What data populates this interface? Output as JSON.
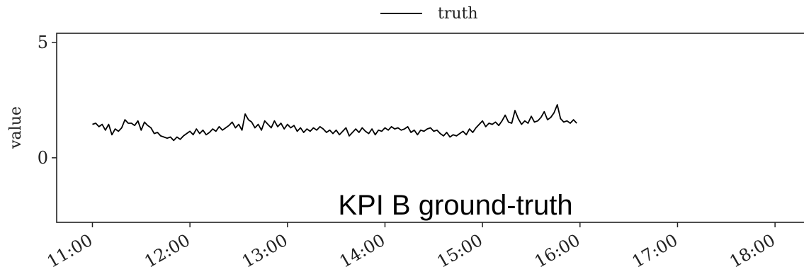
{
  "chart_data": {
    "type": "line",
    "title": "",
    "xlabel": "",
    "ylabel": "value",
    "annotation": "KPI B ground-truth",
    "legend": {
      "placement": "top-center",
      "entries": [
        "truth"
      ]
    },
    "grid": false,
    "x_unit": "time of day (HH:MM)",
    "x_ticks": [
      "11:00",
      "12:00",
      "13:00",
      "14:00",
      "15:00",
      "16:00",
      "17:00",
      "18:00"
    ],
    "xlim": [
      "10:38",
      "18:20"
    ],
    "y_ticks": [
      0,
      5
    ],
    "ylim": [
      -2.8,
      5.4
    ],
    "colors": {
      "truth": "#000000",
      "anomaly": "#ff0000"
    },
    "series": [
      {
        "name": "truth",
        "points": [
          [
            "11:00",
            1.45
          ],
          [
            "11:02",
            1.5
          ],
          [
            "11:04",
            1.35
          ],
          [
            "11:06",
            1.45
          ],
          [
            "11:08",
            1.2
          ],
          [
            "11:10",
            1.45
          ],
          [
            "11:12",
            1.0
          ],
          [
            "11:14",
            1.25
          ],
          [
            "11:16",
            1.15
          ],
          [
            "11:18",
            1.3
          ],
          [
            "11:20",
            1.65
          ],
          [
            "11:22",
            1.5
          ],
          [
            "11:24",
            1.5
          ],
          [
            "11:26",
            1.4
          ],
          [
            "11:28",
            1.6
          ],
          [
            "11:30",
            1.2
          ],
          [
            "11:32",
            1.55
          ],
          [
            "11:34",
            1.4
          ],
          [
            "11:36",
            1.3
          ],
          [
            "11:38",
            1.05
          ],
          [
            "11:40",
            1.1
          ],
          [
            "11:42",
            0.95
          ],
          [
            "11:44",
            0.9
          ],
          [
            "11:46",
            0.85
          ],
          [
            "11:48",
            0.9
          ],
          [
            "11:50",
            0.75
          ],
          [
            "11:52",
            0.9
          ],
          [
            "11:54",
            0.8
          ],
          [
            "11:56",
            0.95
          ],
          [
            "11:58",
            1.05
          ],
          [
            "12:00",
            1.15
          ],
          [
            "12:02",
            1.0
          ],
          [
            "12:04",
            1.25
          ],
          [
            "12:06",
            1.05
          ],
          [
            "12:08",
            1.2
          ],
          [
            "12:10",
            1.0
          ],
          [
            "12:12",
            1.1
          ],
          [
            "12:14",
            1.25
          ],
          [
            "12:16",
            1.15
          ],
          [
            "12:18",
            1.35
          ],
          [
            "12:20",
            1.2
          ],
          [
            "12:22",
            1.3
          ],
          [
            "12:24",
            1.4
          ],
          [
            "12:26",
            1.55
          ],
          [
            "12:28",
            1.3
          ],
          [
            "12:30",
            1.45
          ],
          [
            "12:32",
            1.2
          ],
          [
            "12:34",
            1.9
          ],
          [
            "12:36",
            1.65
          ],
          [
            "12:38",
            1.55
          ],
          [
            "12:40",
            1.3
          ],
          [
            "12:42",
            1.45
          ],
          [
            "12:44",
            1.2
          ],
          [
            "12:46",
            1.6
          ],
          [
            "12:48",
            1.45
          ],
          [
            "12:50",
            1.3
          ],
          [
            "12:52",
            1.6
          ],
          [
            "12:54",
            1.35
          ],
          [
            "12:56",
            1.5
          ],
          [
            "12:58",
            1.25
          ],
          [
            "13:00",
            1.45
          ],
          [
            "13:02",
            1.3
          ],
          [
            "13:04",
            1.4
          ],
          [
            "13:06",
            1.15
          ],
          [
            "13:08",
            1.3
          ],
          [
            "13:10",
            1.1
          ],
          [
            "13:12",
            1.25
          ],
          [
            "13:14",
            1.15
          ],
          [
            "13:16",
            1.3
          ],
          [
            "13:18",
            1.2
          ],
          [
            "13:20",
            1.35
          ],
          [
            "13:22",
            1.25
          ],
          [
            "13:24",
            1.1
          ],
          [
            "13:26",
            1.2
          ],
          [
            "13:28",
            1.05
          ],
          [
            "13:30",
            1.2
          ],
          [
            "13:32",
            1.0
          ],
          [
            "13:34",
            1.15
          ],
          [
            "13:36",
            1.3
          ],
          [
            "13:38",
            0.95
          ],
          [
            "13:40",
            1.1
          ],
          [
            "13:42",
            1.25
          ],
          [
            "13:44",
            1.1
          ],
          [
            "13:46",
            1.3
          ],
          [
            "13:48",
            1.15
          ],
          [
            "13:50",
            1.05
          ],
          [
            "13:52",
            1.25
          ],
          [
            "13:54",
            1.0
          ],
          [
            "13:56",
            1.2
          ],
          [
            "13:58",
            1.15
          ],
          [
            "14:00",
            1.3
          ],
          [
            "14:02",
            1.2
          ],
          [
            "14:04",
            1.35
          ],
          [
            "14:06",
            1.25
          ],
          [
            "14:08",
            1.3
          ],
          [
            "14:10",
            1.2
          ],
          [
            "14:12",
            1.25
          ],
          [
            "14:14",
            1.35
          ],
          [
            "14:16",
            1.1
          ],
          [
            "14:18",
            1.2
          ],
          [
            "14:20",
            1.0
          ],
          [
            "14:22",
            1.2
          ],
          [
            "14:24",
            1.15
          ],
          [
            "14:26",
            1.25
          ],
          [
            "14:28",
            1.3
          ],
          [
            "14:30",
            1.15
          ],
          [
            "14:32",
            1.2
          ],
          [
            "14:34",
            1.05
          ],
          [
            "14:36",
            0.95
          ],
          [
            "14:38",
            1.1
          ],
          [
            "14:40",
            0.9
          ],
          [
            "14:42",
            1.0
          ],
          [
            "14:44",
            0.95
          ],
          [
            "14:46",
            1.05
          ],
          [
            "14:48",
            1.15
          ],
          [
            "14:50",
            1.0
          ],
          [
            "14:52",
            1.25
          ],
          [
            "14:54",
            1.1
          ],
          [
            "14:56",
            1.3
          ],
          [
            "14:58",
            1.45
          ],
          [
            "15:00",
            1.6
          ],
          [
            "15:02",
            1.35
          ],
          [
            "15:04",
            1.5
          ],
          [
            "15:06",
            1.45
          ],
          [
            "15:08",
            1.55
          ],
          [
            "15:10",
            1.4
          ],
          [
            "15:12",
            1.6
          ],
          [
            "15:14",
            1.85
          ],
          [
            "15:16",
            1.55
          ],
          [
            "15:18",
            1.5
          ],
          [
            "15:20",
            2.05
          ],
          [
            "15:22",
            1.7
          ],
          [
            "15:24",
            1.45
          ],
          [
            "15:26",
            1.6
          ],
          [
            "15:28",
            1.5
          ],
          [
            "15:30",
            1.8
          ],
          [
            "15:32",
            1.55
          ],
          [
            "15:34",
            1.6
          ],
          [
            "15:36",
            1.75
          ],
          [
            "15:38",
            2.0
          ],
          [
            "15:40",
            1.65
          ],
          [
            "15:42",
            1.75
          ],
          [
            "15:44",
            1.95
          ],
          [
            "15:46",
            2.3
          ],
          [
            "15:48",
            1.7
          ],
          [
            "15:50",
            1.55
          ],
          [
            "15:52",
            1.6
          ],
          [
            "15:54",
            1.5
          ],
          [
            "15:56",
            1.65
          ],
          [
            "15:58",
            1.5
          ]
        ]
      }
    ]
  }
}
